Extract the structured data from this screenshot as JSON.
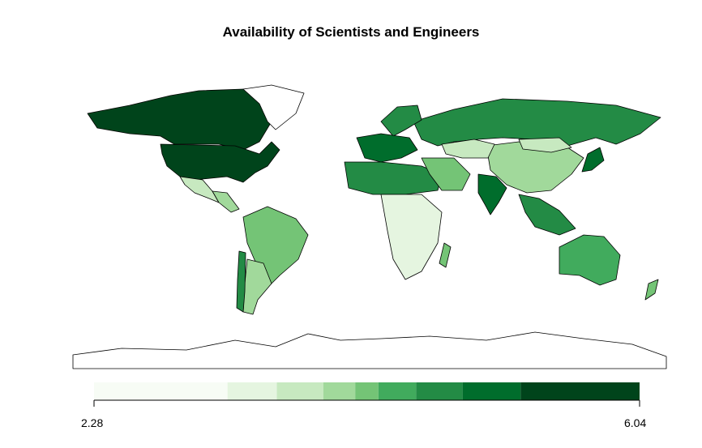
{
  "title": "Availability of Scientists and Engineers",
  "legend": {
    "min_label": "2.28",
    "max_label": "6.04",
    "range": [
      2.28,
      6.04
    ],
    "bins": [
      {
        "from": 2.28,
        "to": 3.2,
        "color": "#f7fcf5"
      },
      {
        "from": 3.2,
        "to": 3.54,
        "color": "#e5f5e0"
      },
      {
        "from": 3.54,
        "to": 3.86,
        "color": "#c7e9c0"
      },
      {
        "from": 3.86,
        "to": 4.08,
        "color": "#a1d99b"
      },
      {
        "from": 4.08,
        "to": 4.24,
        "color": "#74c476"
      },
      {
        "from": 4.24,
        "to": 4.5,
        "color": "#41ab5d"
      },
      {
        "from": 4.5,
        "to": 4.82,
        "color": "#238b45"
      },
      {
        "from": 4.82,
        "to": 5.22,
        "color": "#006d2c"
      },
      {
        "from": 5.22,
        "to": 6.04,
        "color": "#00441b"
      }
    ]
  },
  "regions": [
    {
      "name": "Canada",
      "bin": 8
    },
    {
      "name": "United States",
      "bin": 8
    },
    {
      "name": "Greenland",
      "bin": null
    },
    {
      "name": "Mexico",
      "bin": 2
    },
    {
      "name": "Central America",
      "bin": 3
    },
    {
      "name": "Brazil",
      "bin": 4
    },
    {
      "name": "Argentina",
      "bin": 3
    },
    {
      "name": "Chile",
      "bin": 6
    },
    {
      "name": "Russia",
      "bin": 6
    },
    {
      "name": "China",
      "bin": 3
    },
    {
      "name": "Kazakhstan",
      "bin": 2
    },
    {
      "name": "Mongolia",
      "bin": 2
    },
    {
      "name": "India",
      "bin": 7
    },
    {
      "name": "Japan",
      "bin": 7
    },
    {
      "name": "Australia",
      "bin": 5
    },
    {
      "name": "Scandinavia",
      "bin": 6
    },
    {
      "name": "Western Europe",
      "bin": 7
    },
    {
      "name": "North Africa",
      "bin": 6
    },
    {
      "name": "Middle East",
      "bin": 4
    },
    {
      "name": "Southern Africa",
      "bin": 1
    },
    {
      "name": "Madagascar",
      "bin": 4
    },
    {
      "name": "Southeast Asia",
      "bin": 6
    },
    {
      "name": "New Zealand",
      "bin": 4
    },
    {
      "name": "Antarctica",
      "bin": null
    }
  ]
}
